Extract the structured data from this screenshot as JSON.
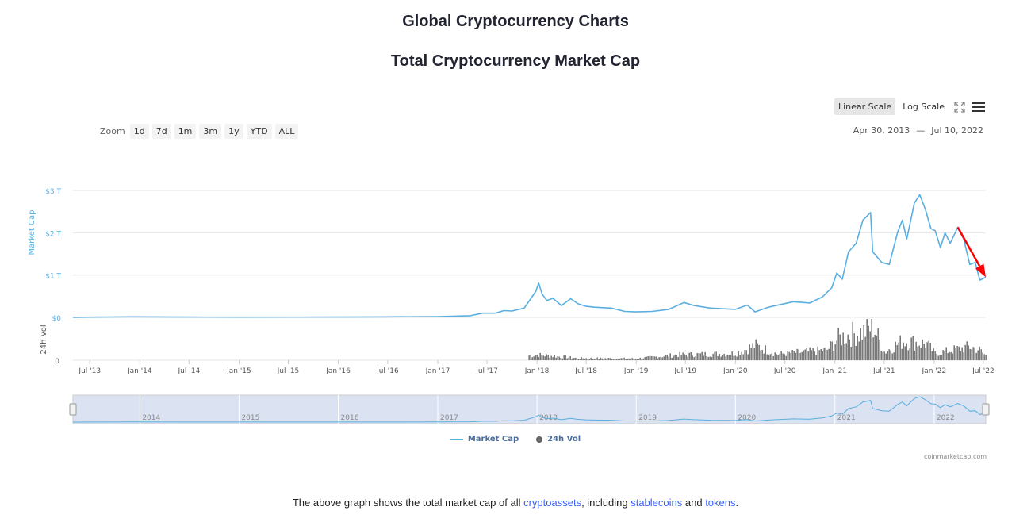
{
  "page": {
    "title": "Global Cryptocurrency Charts",
    "subtitle": "Total Cryptocurrency Market Cap"
  },
  "toolbar": {
    "linear_label": "Linear Scale",
    "log_label": "Log Scale",
    "active_scale": "linear",
    "zoom_label": "Zoom",
    "zoom_buttons": [
      "1d",
      "7d",
      "1m",
      "3m",
      "1y",
      "YTD",
      "ALL"
    ],
    "range_from": "Apr 30, 2013",
    "range_sep": "—",
    "range_to": "Jul 10, 2022"
  },
  "legend": {
    "market_cap": "Market Cap",
    "volume": "24h Vol"
  },
  "credit": "coinmarketcap.com",
  "footer": {
    "prefix": "The above graph shows the total market cap of all ",
    "link1": "cryptoassets",
    "mid": ", including ",
    "link2": "stablecoins",
    "and": " and ",
    "link3": "tokens",
    "suffix": "."
  },
  "colors": {
    "market_cap": "#5aaee0",
    "volume": "#666666",
    "navigator_mask": "#ccd6eb",
    "annotation_arrow": "#ff0000"
  },
  "chart_data": {
    "type": "line",
    "x_type": "date",
    "x_range": [
      "2013-04-30",
      "2022-07-10"
    ],
    "x_ticks": [
      "Jul '13",
      "Jan '14",
      "Jul '14",
      "Jan '15",
      "Jul '15",
      "Jan '16",
      "Jul '16",
      "Jan '17",
      "Jul '17",
      "Jan '18",
      "Jul '18",
      "Jan '19",
      "Jul '19",
      "Jan '20",
      "Jul '20",
      "Jan '21",
      "Jul '21",
      "Jan '22",
      "Jul '22"
    ],
    "y_label": "Market Cap",
    "y_ticks": [
      "$0",
      "$1 T",
      "$2 T",
      "$3 T"
    ],
    "y_tick_values": [
      0,
      1,
      2,
      3
    ],
    "y_unit": "T USD",
    "volume_label": "24h Vol",
    "volume_ticks": [
      "0"
    ],
    "navigator_years": [
      "2014",
      "2015",
      "2016",
      "2017",
      "2018",
      "2019",
      "2020",
      "2021",
      "2022"
    ],
    "series": [
      {
        "name": "Market Cap",
        "points": [
          [
            "2013-04-30",
            0.0015
          ],
          [
            "2013-12-01",
            0.014
          ],
          [
            "2014-06-01",
            0.008
          ],
          [
            "2015-01-01",
            0.005
          ],
          [
            "2016-01-01",
            0.007
          ],
          [
            "2016-06-01",
            0.012
          ],
          [
            "2017-01-01",
            0.018
          ],
          [
            "2017-05-01",
            0.04
          ],
          [
            "2017-06-15",
            0.1
          ],
          [
            "2017-08-01",
            0.1
          ],
          [
            "2017-09-01",
            0.16
          ],
          [
            "2017-10-01",
            0.15
          ],
          [
            "2017-11-15",
            0.22
          ],
          [
            "2017-12-10",
            0.45
          ],
          [
            "2017-12-28",
            0.62
          ],
          [
            "2018-01-07",
            0.81
          ],
          [
            "2018-01-20",
            0.55
          ],
          [
            "2018-02-06",
            0.4
          ],
          [
            "2018-03-01",
            0.45
          ],
          [
            "2018-04-01",
            0.28
          ],
          [
            "2018-05-05",
            0.44
          ],
          [
            "2018-06-01",
            0.32
          ],
          [
            "2018-07-01",
            0.26
          ],
          [
            "2018-08-01",
            0.24
          ],
          [
            "2018-10-01",
            0.22
          ],
          [
            "2018-11-20",
            0.14
          ],
          [
            "2019-01-01",
            0.13
          ],
          [
            "2019-03-01",
            0.14
          ],
          [
            "2019-05-01",
            0.19
          ],
          [
            "2019-06-26",
            0.35
          ],
          [
            "2019-08-01",
            0.28
          ],
          [
            "2019-10-01",
            0.22
          ],
          [
            "2020-01-01",
            0.19
          ],
          [
            "2020-02-14",
            0.29
          ],
          [
            "2020-03-13",
            0.13
          ],
          [
            "2020-05-01",
            0.24
          ],
          [
            "2020-08-01",
            0.37
          ],
          [
            "2020-10-01",
            0.34
          ],
          [
            "2020-11-15",
            0.48
          ],
          [
            "2020-12-20",
            0.7
          ],
          [
            "2021-01-08",
            1.05
          ],
          [
            "2021-01-28",
            0.9
          ],
          [
            "2021-02-20",
            1.55
          ],
          [
            "2021-03-20",
            1.75
          ],
          [
            "2021-04-14",
            2.3
          ],
          [
            "2021-05-12",
            2.48
          ],
          [
            "2021-05-20",
            1.55
          ],
          [
            "2021-06-22",
            1.3
          ],
          [
            "2021-07-20",
            1.25
          ],
          [
            "2021-08-20",
            2.02
          ],
          [
            "2021-09-06",
            2.3
          ],
          [
            "2021-09-22",
            1.85
          ],
          [
            "2021-10-20",
            2.7
          ],
          [
            "2021-11-09",
            2.9
          ],
          [
            "2021-11-30",
            2.55
          ],
          [
            "2021-12-20",
            2.1
          ],
          [
            "2022-01-05",
            2.05
          ],
          [
            "2022-01-24",
            1.65
          ],
          [
            "2022-02-10",
            2.0
          ],
          [
            "2022-03-01",
            1.75
          ],
          [
            "2022-03-29",
            2.13
          ],
          [
            "2022-04-20",
            1.85
          ],
          [
            "2022-05-12",
            1.25
          ],
          [
            "2022-06-01",
            1.3
          ],
          [
            "2022-06-18",
            0.88
          ],
          [
            "2022-07-10",
            0.95
          ]
        ]
      },
      {
        "name": "24h Vol",
        "points": [
          [
            "2017-12-01",
            0.07
          ],
          [
            "2018-01-05",
            0.08
          ],
          [
            "2018-06-01",
            0.03
          ],
          [
            "2019-01-01",
            0.025
          ],
          [
            "2019-06-01",
            0.08
          ],
          [
            "2020-01-01",
            0.1
          ],
          [
            "2020-03-12",
            0.22
          ],
          [
            "2020-06-01",
            0.09
          ],
          [
            "2020-12-01",
            0.15
          ],
          [
            "2021-01-11",
            0.32
          ],
          [
            "2021-02-23",
            0.38
          ],
          [
            "2021-04-18",
            0.42
          ],
          [
            "2021-05-19",
            0.51
          ],
          [
            "2021-07-01",
            0.12
          ],
          [
            "2021-09-07",
            0.29
          ],
          [
            "2021-12-04",
            0.24
          ],
          [
            "2022-01-01",
            0.1
          ],
          [
            "2022-05-12",
            0.2
          ],
          [
            "2022-06-13",
            0.16
          ],
          [
            "2022-07-10",
            0.06
          ]
        ]
      }
    ],
    "scale": "linear",
    "grid": true,
    "legend_position": "bottom"
  }
}
